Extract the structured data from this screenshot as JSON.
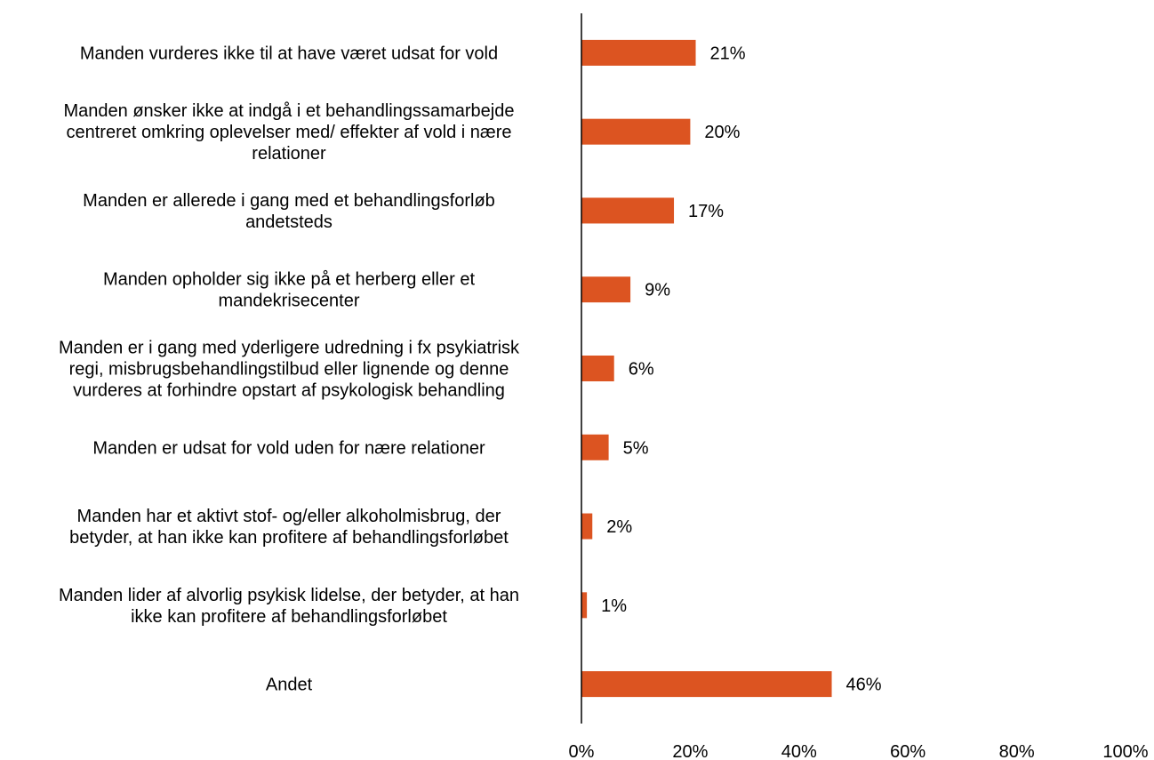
{
  "chart_data": {
    "type": "bar",
    "orientation": "horizontal",
    "title": "",
    "xlabel": "",
    "ylabel": "",
    "xlim": [
      0,
      100
    ],
    "x_ticks": [
      "0%",
      "20%",
      "40%",
      "60%",
      "80%",
      "100%"
    ],
    "grid": false,
    "legend": "none",
    "bar_color": "#dc5421",
    "value_suffix": "%",
    "categories": [
      [
        "Manden vurderes ikke til at have været udsat for vold"
      ],
      [
        "Manden ønsker ikke at indgå i et behandlingssamarbejde",
        "centreret omkring oplevelser med/ effekter af vold i nære",
        "relationer"
      ],
      [
        "Manden er allerede i gang med et behandlingsforløb",
        "andetsteds"
      ],
      [
        "Manden opholder sig ikke på et herberg eller et",
        "mandekrisecenter"
      ],
      [
        "Manden er i gang med yderligere udredning i fx psykiatrisk",
        "regi, misbrugsbehandlingstilbud eller lignende og denne",
        "vurderes at forhindre opstart af psykologisk behandling"
      ],
      [
        "Manden er udsat for vold uden for nære relationer"
      ],
      [
        "Manden har et aktivt stof- og/eller alkoholmisbrug, der",
        "betyder, at han ikke kan profitere af behandlingsforløbet"
      ],
      [
        "Manden lider af alvorlig psykisk lidelse, der betyder, at han",
        "ikke kan profitere af behandlingsforløbet"
      ],
      [
        "Andet"
      ]
    ],
    "values": [
      21,
      20,
      17,
      9,
      6,
      5,
      2,
      1,
      46
    ],
    "value_labels": [
      "21%",
      "20%",
      "17%",
      "9%",
      "6%",
      "5%",
      "2%",
      "1%",
      "46%"
    ]
  }
}
